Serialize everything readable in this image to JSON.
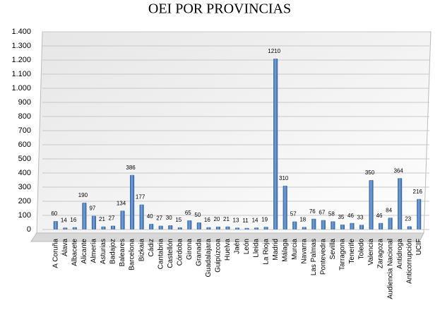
{
  "chart_data": {
    "type": "bar",
    "title": "OEI POR PROVINCIAS",
    "categories": [
      "A Coruña",
      "Álava",
      "Albacete",
      "Alicante",
      "Almería",
      "Asturias",
      "Badajoz",
      "Baleares",
      "Barcelona",
      "Bizkaia",
      "Cádiz",
      "Cantabria",
      "Castellón",
      "Córdoba",
      "Girona",
      "Granada",
      "Guadalajara",
      "Guipúzcoa",
      "Huelva",
      "Jaén",
      "León",
      "Lleida",
      "La Rioja",
      "Madrid",
      "Málaga",
      "Murcia",
      "Navarra",
      "Las Palmas",
      "Pontevedra",
      "Sevilla",
      "Tarragona",
      "Tenerife",
      "Toledo",
      "Valencia",
      "Zaragoza",
      "Audiencia Nacional",
      "Antidroga",
      "Anticorrupción",
      "UCIF"
    ],
    "values": [
      60,
      14,
      16,
      190,
      97,
      21,
      27,
      134,
      386,
      177,
      40,
      27,
      30,
      15,
      65,
      50,
      16,
      20,
      21,
      13,
      11,
      14,
      19,
      1210,
      310,
      57,
      18,
      76,
      67,
      58,
      35,
      46,
      33,
      350,
      46,
      84,
      364,
      23,
      216
    ],
    "color": "#4a7ebb",
    "ylim": [
      0,
      1400
    ],
    "yticks": [
      0,
      100,
      200,
      300,
      400,
      500,
      600,
      700,
      800,
      900,
      {
        "value": 1000,
        "label": "1.000"
      },
      {
        "value": 1100,
        "label": "1.100"
      },
      {
        "value": 1200,
        "label": "1.200"
      },
      {
        "value": 1300,
        "label": "1.300"
      },
      {
        "value": 1400,
        "label": "1.400"
      }
    ],
    "grid": true
  }
}
